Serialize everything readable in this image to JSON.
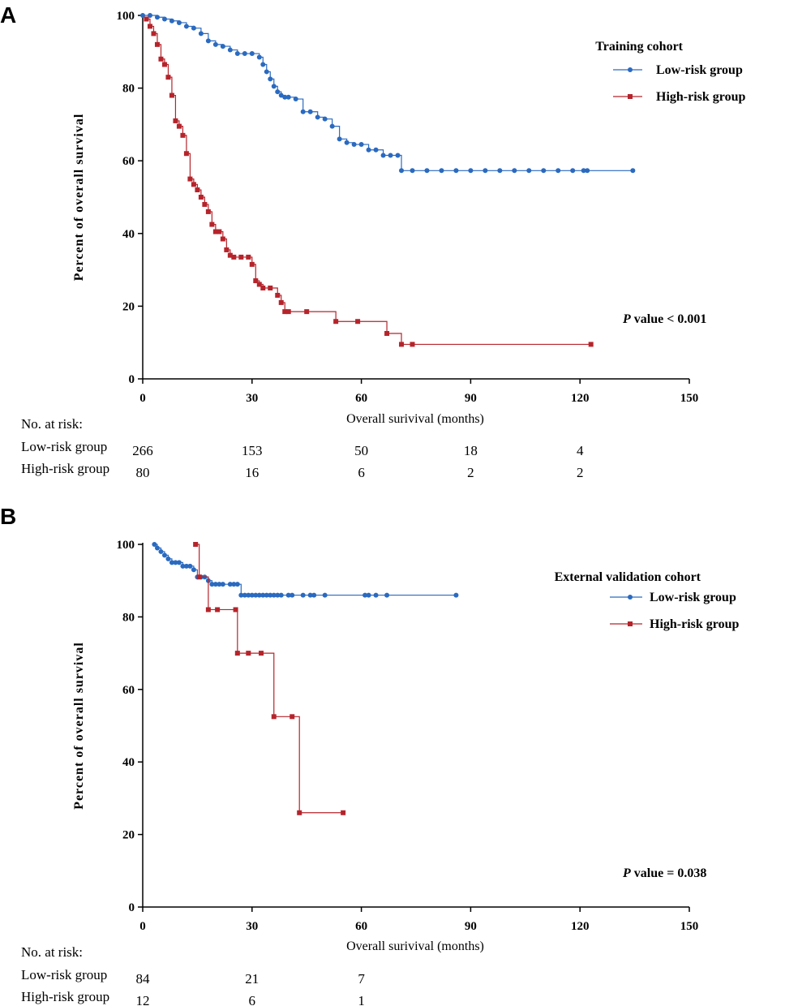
{
  "chart_data": [
    {
      "type": "line",
      "panel": "A",
      "xlabel": "Overall surivival  (months)",
      "ylabel": "Percent of overall survival",
      "xlim": [
        0,
        150
      ],
      "ylim": [
        0,
        100
      ],
      "xticks": [
        "0",
        "30",
        "60",
        "90",
        "120",
        "150"
      ],
      "yticks": [
        "0",
        "20",
        "40",
        "60",
        "80",
        "100"
      ],
      "legend_title": "Training cohort",
      "p_prefix": "P",
      "p_text": " value < 0.001",
      "risk_header": "No. at risk:",
      "risk_rows": [
        {
          "label": "Low-risk group",
          "values": [
            "266",
            "153",
            "50",
            "18",
            "4"
          ]
        },
        {
          "label": "High-risk group",
          "values": [
            "80",
            "16",
            "6",
            "2",
            "2"
          ]
        }
      ],
      "series": [
        {
          "name": "Low-risk group",
          "color": "#2a6ac0",
          "marker": "circle",
          "x": [
            0,
            2,
            4,
            6,
            8,
            10,
            12,
            14,
            16,
            18,
            20,
            22,
            24,
            26,
            28,
            30,
            32,
            33,
            34,
            35,
            36,
            37,
            38,
            39,
            40,
            42,
            44,
            46,
            48,
            50,
            52,
            54,
            56,
            58,
            60,
            62,
            64,
            66,
            68,
            70,
            71,
            74,
            78,
            82,
            86,
            90,
            94,
            98,
            102,
            106,
            110,
            114,
            118,
            121,
            122,
            134.5
          ],
          "y": [
            100,
            100,
            99.5,
            99,
            98.5,
            98,
            97,
            96.5,
            95,
            93,
            92,
            91.5,
            90.5,
            89.5,
            89.5,
            89.5,
            88.5,
            86.5,
            84.5,
            82.5,
            80.5,
            79,
            78,
            77.5,
            77.5,
            77,
            73.5,
            73.5,
            72,
            71.5,
            69.5,
            66,
            65,
            64.5,
            64.5,
            63,
            63,
            61.5,
            61.5,
            61.5,
            57.3,
            57.3,
            57.3,
            57.3,
            57.3,
            57.3,
            57.3,
            57.3,
            57.3,
            57.3,
            57.3,
            57.3,
            57.3,
            57.3,
            57.3,
            57.3
          ]
        },
        {
          "name": "High-risk group",
          "color": "#b5242b",
          "marker": "square",
          "x": [
            1,
            2,
            3,
            4,
            5,
            6,
            7,
            8,
            9,
            10,
            11,
            12,
            13,
            14,
            15,
            16,
            17,
            18,
            19,
            20,
            21,
            22,
            23,
            24,
            25,
            27,
            29,
            30,
            31,
            32,
            33,
            35,
            37,
            38,
            39,
            40,
            45,
            53,
            59,
            67,
            71,
            74,
            123
          ],
          "y": [
            99,
            97,
            95,
            92,
            88,
            86.5,
            83,
            78,
            71,
            69.5,
            67,
            62,
            55,
            53.5,
            52,
            50,
            48,
            46,
            42.5,
            40.5,
            40.5,
            38.5,
            35.5,
            34,
            33.5,
            33.5,
            33.5,
            31.5,
            27,
            26,
            25,
            25,
            23,
            21,
            18.5,
            18.5,
            18.5,
            15.8,
            15.8,
            12.5,
            9.5,
            9.5,
            9.5
          ]
        }
      ]
    },
    {
      "type": "line",
      "panel": "B",
      "xlabel": "Overall surivival  (months)",
      "ylabel": "Percent of overall survival",
      "xlim": [
        0,
        150
      ],
      "ylim": [
        0,
        100
      ],
      "xticks": [
        "0",
        "30",
        "60",
        "90",
        "120",
        "150"
      ],
      "yticks": [
        "0",
        "20",
        "40",
        "60",
        "80",
        "100"
      ],
      "legend_title": "External validation cohort",
      "p_prefix": "P",
      "p_text": " value = 0.038",
      "risk_header": "No. at risk:",
      "risk_rows": [
        {
          "label": "Low-risk group",
          "values": [
            "84",
            "21",
            "7"
          ]
        },
        {
          "label": "High-risk group",
          "values": [
            "12",
            "6",
            "1"
          ]
        }
      ],
      "series": [
        {
          "name": "Low-risk group",
          "color": "#2a6ac0",
          "marker": "circle",
          "x": [
            3.2,
            4,
            5,
            6,
            7,
            8,
            9,
            10,
            11,
            12,
            13,
            14,
            15,
            16,
            17,
            18,
            19,
            20,
            21,
            22,
            24,
            25,
            26,
            27,
            28,
            29,
            30,
            31,
            32,
            33,
            34,
            35,
            36,
            37,
            38,
            40,
            41,
            44,
            46,
            47,
            50,
            61,
            62,
            64,
            67,
            86
          ],
          "y": [
            100,
            99,
            98,
            97,
            96,
            95,
            95,
            95,
            94,
            94,
            94,
            93,
            91,
            91,
            91,
            90,
            89,
            89,
            89,
            89,
            89,
            89,
            89,
            86,
            86,
            86,
            86,
            86,
            86,
            86,
            86,
            86,
            86,
            86,
            86,
            86,
            86,
            86,
            86,
            86,
            86,
            86,
            86,
            86,
            86,
            86
          ]
        },
        {
          "name": "High-risk group",
          "color": "#b5242b",
          "marker": "square",
          "x": [
            14.5,
            15.5,
            18,
            20.5,
            25.5,
            26,
            29,
            32.5,
            36,
            41,
            43,
            55
          ],
          "y": [
            100,
            91,
            82,
            82,
            82,
            70,
            70,
            70,
            52.5,
            52.5,
            26,
            26
          ]
        }
      ]
    }
  ]
}
